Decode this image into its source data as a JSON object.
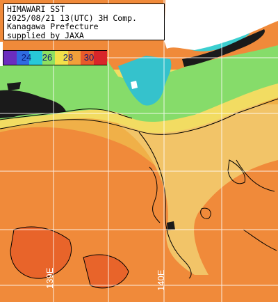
{
  "header": {
    "line1": "HIMAWARI SST",
    "line2": "2025/08/21 13(UTC) 3H Comp.",
    "line3": "Kanagawa Prefecture",
    "line4": "supplied by JAXA"
  },
  "legend": {
    "labels": [
      "24",
      "26",
      "28",
      "30"
    ],
    "colors": [
      "#6b2dbf",
      "#2f6be0",
      "#28c8d8",
      "#8fe060",
      "#f2e04a",
      "#f0a03a",
      "#e85a2a",
      "#d8262a"
    ]
  },
  "longitude_labels": {
    "left": "139E",
    "right": "140E"
  },
  "colors": {
    "land": "#ffffff",
    "cloud": "#1a1a1a",
    "warm_sea": "#f08a3a",
    "mid_sea": "#f2c060",
    "cool_sea": "#7ad870",
    "cold_sea": "#2fb8c8",
    "grid": "#ffffff",
    "contour": "#000000"
  }
}
